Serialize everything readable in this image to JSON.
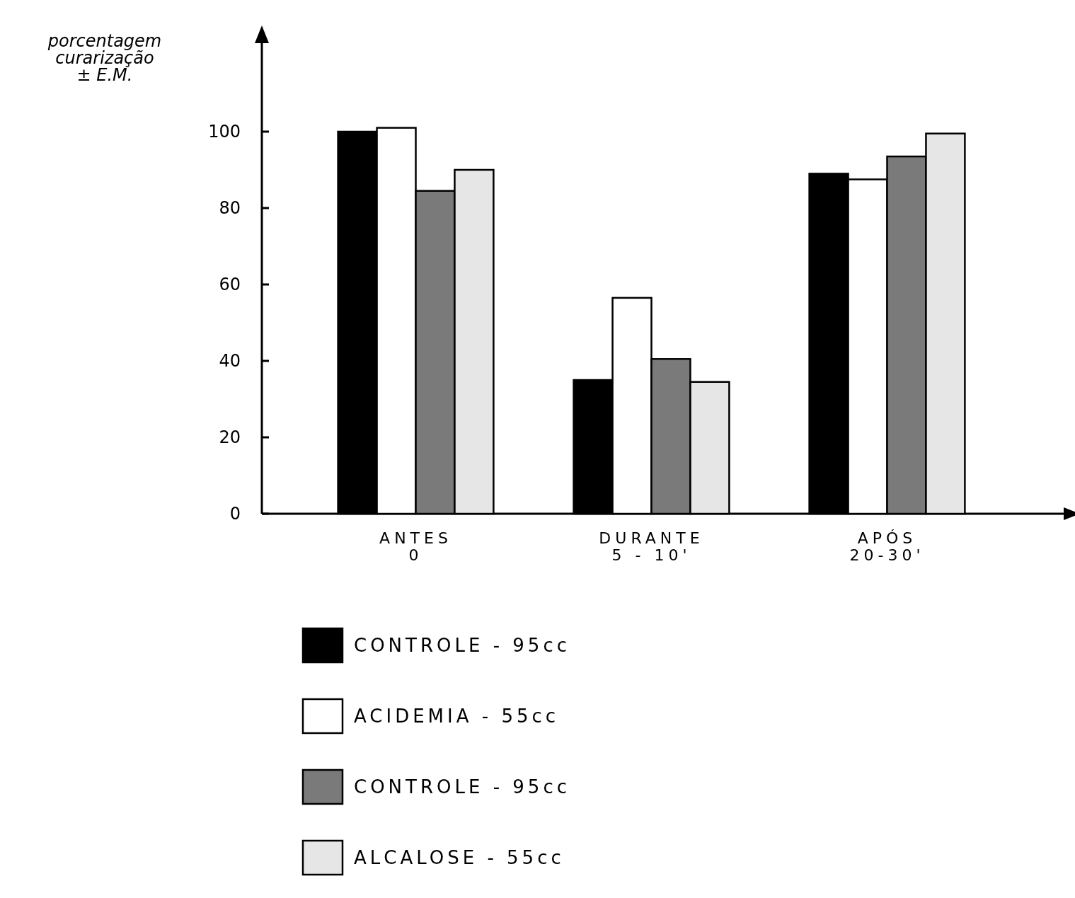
{
  "chart_data": {
    "type": "bar",
    "ylabel": "porcentagem\ncurarização\n± E.M.",
    "categories": [
      "ANTES\n0",
      "DURANTE\n5 - 10'",
      "APÓS\n20-30'"
    ],
    "series": [
      {
        "name": "CONTROLE - 95cc",
        "color": "#000000",
        "values": [
          100,
          35,
          89
        ]
      },
      {
        "name": "ACIDEMIA - 55cc",
        "color": "#ffffff",
        "values": [
          101,
          56.5,
          87.5
        ]
      },
      {
        "name": "CONTROLE - 95cc",
        "color": "#7a7a7a",
        "values": [
          84.5,
          40.5,
          93.5
        ]
      },
      {
        "name": "ALCALOSE - 55cc",
        "color": "#e6e6e6",
        "values": [
          90,
          34.5,
          99.5
        ]
      }
    ],
    "ylim": [
      0,
      125
    ],
    "yticks": [
      0,
      20,
      40,
      60,
      80,
      100
    ],
    "legend": "bottom",
    "grid": false
  }
}
